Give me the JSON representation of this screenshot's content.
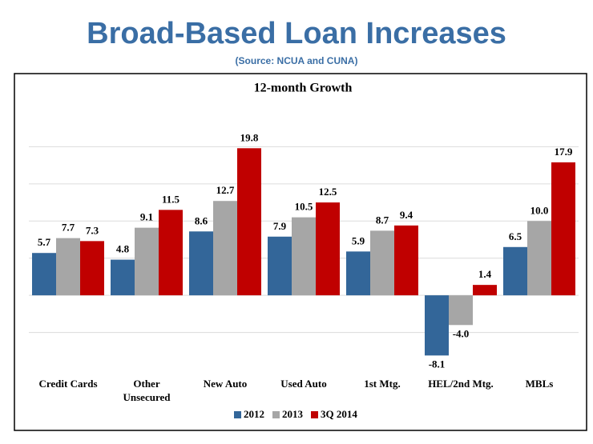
{
  "header": {
    "title": "Broad-Based Loan Increases",
    "subtitle": "(Source: NCUA and CUNA)"
  },
  "chart_data": {
    "type": "bar",
    "title": "12-month Growth",
    "categories": [
      "Credit Cards",
      "Other Unsecured",
      "New Auto",
      "Used Auto",
      "1st Mtg.",
      "HEL/2nd Mtg.",
      "MBLs"
    ],
    "series": [
      {
        "name": "2012",
        "color": "#336699",
        "values": [
          5.7,
          4.8,
          8.6,
          7.9,
          5.9,
          -8.1,
          6.5
        ],
        "value_labels": [
          "5.7",
          "4.8",
          "8.6",
          "7.9",
          "5.9",
          "-8.1",
          "6.5"
        ]
      },
      {
        "name": "2013",
        "color": "#a6a6a6",
        "values": [
          7.7,
          9.1,
          12.7,
          10.5,
          8.7,
          -4,
          10
        ],
        "value_labels": [
          "7.7",
          "9.1",
          "12.7",
          "10.5",
          "8.7",
          "-4.0",
          "10.0"
        ]
      },
      {
        "name": "3Q 2014",
        "color": "#c00000",
        "values": [
          7.3,
          11.5,
          19.8,
          12.5,
          9.4,
          1.4,
          17.9
        ],
        "value_labels": [
          "7.3",
          "11.5",
          "19.8",
          "12.5",
          "9.4",
          "1.4",
          "17.9"
        ]
      }
    ],
    "ylim": [
      -10,
      25
    ],
    "yticks": [
      -5,
      0,
      5,
      10,
      15,
      20
    ],
    "grid": true,
    "legend": "bottom"
  }
}
